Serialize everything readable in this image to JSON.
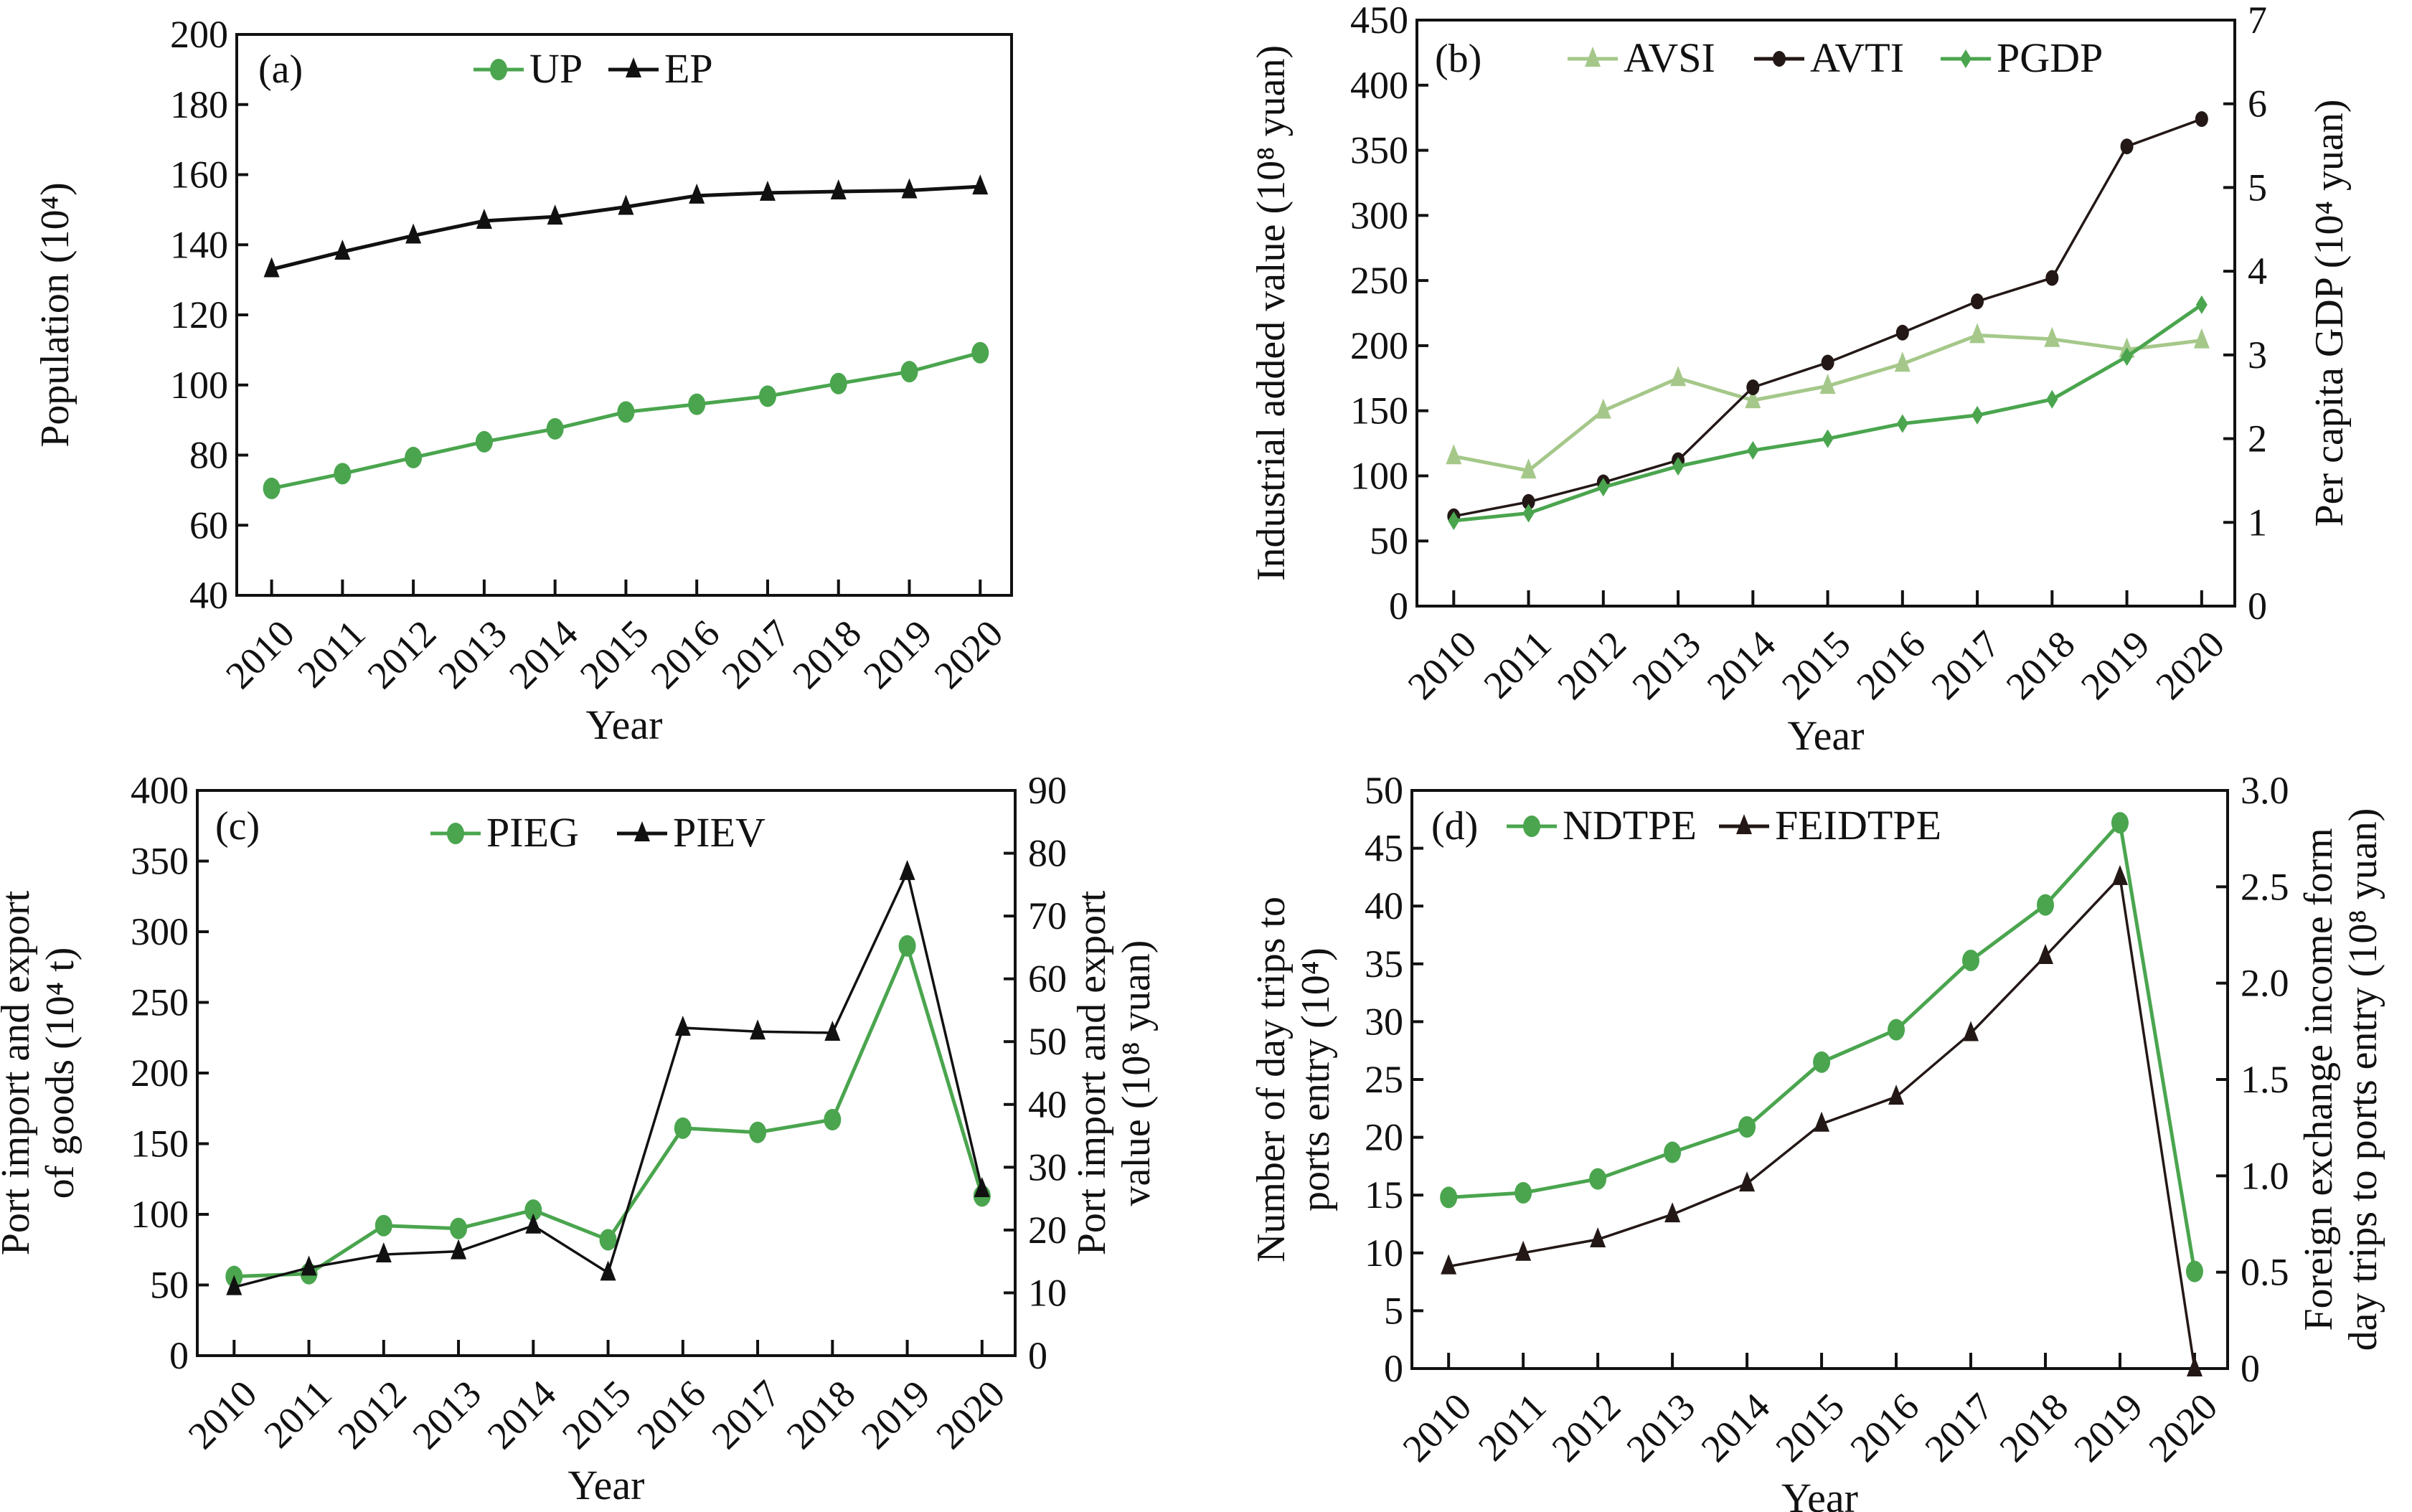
{
  "chart_data": [
    {
      "type": "line",
      "panel_label": "(a)",
      "title": "",
      "xlabel": "Year",
      "ylabel": "Population (10⁴)",
      "x": [
        "2010",
        "2011",
        "2012",
        "2013",
        "2014",
        "2015",
        "2016",
        "2017",
        "2018",
        "2019",
        "2020"
      ],
      "ylim": [
        40,
        200
      ],
      "yticks": [
        "40",
        "60",
        "80",
        "100",
        "120",
        "140",
        "160",
        "180",
        "200"
      ],
      "ytick_values": [
        40,
        60,
        80,
        100,
        120,
        140,
        160,
        180,
        200
      ],
      "legend_position": "top-center",
      "grid": false,
      "series": [
        {
          "name": "UP",
          "axis": "left",
          "marker": "circle",
          "color": "#4aa54e",
          "values": [
            70.5,
            74.7,
            79.3,
            83.8,
            87.5,
            92.3,
            94.5,
            96.8,
            100.4,
            103.8,
            109.2
          ]
        },
        {
          "name": "EP",
          "axis": "left",
          "marker": "triangle",
          "color": "#111111",
          "values": [
            133.0,
            138.0,
            142.6,
            146.8,
            148.0,
            150.8,
            154.0,
            154.8,
            155.2,
            155.5,
            156.6
          ]
        }
      ]
    },
    {
      "type": "line",
      "panel_label": "(b)",
      "title": "",
      "xlabel": "Year",
      "ylabel": "Industrial added value (10⁸ yuan)",
      "y2label": "Per capita GDP (10⁴ yuan)",
      "x": [
        "2010",
        "2011",
        "2012",
        "2013",
        "2014",
        "2015",
        "2016",
        "2017",
        "2018",
        "2019",
        "2020"
      ],
      "ylim": [
        0,
        450
      ],
      "yticks": [
        "0",
        "50",
        "100",
        "150",
        "200",
        "250",
        "300",
        "350",
        "400",
        "450"
      ],
      "ytick_values": [
        0,
        50,
        100,
        150,
        200,
        250,
        300,
        350,
        400,
        450
      ],
      "y2lim": [
        0,
        7
      ],
      "y2ticks": [
        "0",
        "1",
        "2",
        "3",
        "4",
        "5",
        "6",
        "7"
      ],
      "y2tick_values": [
        0,
        1,
        2,
        3,
        4,
        5,
        6,
        7
      ],
      "legend_position": "top-center",
      "grid": false,
      "series": [
        {
          "name": "AVSI",
          "axis": "left",
          "marker": "triangle",
          "color": "#a5c88a",
          "values": [
            115,
            104,
            150,
            175,
            158,
            169,
            186,
            208,
            205,
            197,
            204
          ]
        },
        {
          "name": "AVTI",
          "axis": "left",
          "marker": "circle-small",
          "color": "#231816",
          "values": [
            69,
            80,
            95,
            112,
            168,
            187,
            210,
            234,
            252,
            353,
            374
          ]
        },
        {
          "name": "PGDP",
          "axis": "right",
          "marker": "diamond",
          "color": "#4aa54e",
          "values": [
            1.02,
            1.11,
            1.42,
            1.67,
            1.86,
            2.0,
            2.18,
            2.28,
            2.47,
            2.98,
            3.6
          ]
        }
      ]
    },
    {
      "type": "line",
      "panel_label": "(c)",
      "title": "",
      "xlabel": "Year",
      "ylabel": [
        "Port import and export",
        "of goods  (10⁴ t)"
      ],
      "y2label": [
        "Port import and export",
        "value (10⁸ yuan)"
      ],
      "x": [
        "2010",
        "2011",
        "2012",
        "2013",
        "2014",
        "2015",
        "2016",
        "2017",
        "2018",
        "2019",
        "2020"
      ],
      "ylim": [
        0,
        400
      ],
      "yticks": [
        "0",
        "50",
        "100",
        "150",
        "200",
        "250",
        "300",
        "350",
        "400"
      ],
      "ytick_values": [
        0,
        50,
        100,
        150,
        200,
        250,
        300,
        350,
        400
      ],
      "y2lim": [
        0,
        90
      ],
      "y2ticks": [
        "0",
        "10",
        "20",
        "30",
        "40",
        "50",
        "60",
        "70",
        "80",
        "90"
      ],
      "y2tick_values": [
        0,
        10,
        20,
        30,
        40,
        50,
        60,
        70,
        80,
        90
      ],
      "legend_position": "top-center",
      "grid": false,
      "series": [
        {
          "name": "PIEG",
          "axis": "left",
          "marker": "circle",
          "color": "#4aa54e",
          "values": [
            56,
            58,
            92,
            90,
            103,
            82,
            161,
            158,
            167,
            290,
            113
          ]
        },
        {
          "name": "PIEV",
          "axis": "right",
          "marker": "triangle",
          "color": "#111111",
          "values": [
            10.9,
            14.0,
            16.1,
            16.6,
            20.7,
            13.2,
            52.2,
            51.6,
            51.4,
            77.0,
            26.5
          ]
        }
      ]
    },
    {
      "type": "line",
      "panel_label": "(d)",
      "title": "",
      "xlabel": "Year",
      "ylabel": [
        "Number of day trips to",
        "ports entry (10⁴)"
      ],
      "y2label": [
        "Foreign exchange income form",
        "day trips to ports entry (10⁸ yuan)"
      ],
      "x": [
        "2010",
        "2011",
        "2012",
        "2013",
        "2014",
        "2015",
        "2016",
        "2017",
        "2018",
        "2019",
        "2020"
      ],
      "ylim": [
        0,
        50
      ],
      "yticks": [
        "0",
        "5",
        "10",
        "15",
        "20",
        "25",
        "30",
        "35",
        "40",
        "45",
        "50"
      ],
      "ytick_values": [
        0,
        5,
        10,
        15,
        20,
        25,
        30,
        35,
        40,
        45,
        50
      ],
      "y2lim": [
        0,
        3.0
      ],
      "y2ticks": [
        "0",
        "0.5",
        "1.0",
        "1.5",
        "2.0",
        "2.5",
        "3.0"
      ],
      "y2tick_values": [
        0,
        0.5,
        1.0,
        1.5,
        2.0,
        2.5,
        3.0
      ],
      "legend_position": "top-left",
      "grid": false,
      "series": [
        {
          "name": "NDTPE",
          "axis": "left",
          "marker": "circle",
          "color": "#4aa54e",
          "values": [
            14.8,
            15.2,
            16.4,
            18.7,
            20.9,
            26.5,
            29.3,
            35.3,
            40.1,
            47.2,
            8.4
          ]
        },
        {
          "name": "FEIDTPE",
          "axis": "right",
          "marker": "triangle",
          "color": "#231816",
          "values": [
            0.53,
            0.6,
            0.67,
            0.8,
            0.96,
            1.27,
            1.41,
            1.74,
            2.14,
            2.55,
            0.0
          ]
        }
      ]
    }
  ]
}
